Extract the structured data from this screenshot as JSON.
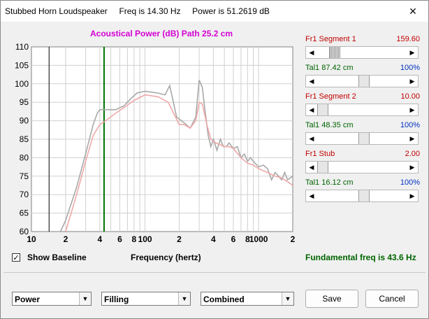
{
  "window": {
    "title": "Stubbed Horn Loudspeaker",
    "freq_text": "Freq is 14.30 Hz",
    "power_text": "Power is 51.2619 dB",
    "close_glyph": "✕"
  },
  "chart_title": "Acoustical Power (dB)   Path 25.2 cm",
  "chart_data": {
    "type": "line",
    "title": "Acoustical Power (dB)   Path 25.2 cm",
    "xlabel": "Frequency (hertz)",
    "ylabel": "",
    "x_scale": "log",
    "xlim": [
      10,
      2000
    ],
    "ylim": [
      60,
      110
    ],
    "y_ticks": [
      110,
      105,
      100,
      95,
      90,
      85,
      80,
      75,
      70,
      65,
      60
    ],
    "x_ticks": [
      {
        "v": 10,
        "label": "10"
      },
      {
        "v": 20,
        "label": "2"
      },
      {
        "v": 40,
        "label": "4"
      },
      {
        "v": 60,
        "label": "6"
      },
      {
        "v": 80,
        "label": "8"
      },
      {
        "v": 100,
        "label": "100"
      },
      {
        "v": 200,
        "label": "2"
      },
      {
        "v": 400,
        "label": "4"
      },
      {
        "v": 600,
        "label": "6"
      },
      {
        "v": 800,
        "label": "8"
      },
      {
        "v": 1000,
        "label": "1000"
      },
      {
        "v": 2000,
        "label": "2"
      }
    ],
    "grid": true,
    "markers": [
      {
        "x": 14.3,
        "color": "#000000"
      },
      {
        "x": 43.6,
        "color": "#007000"
      }
    ],
    "series": [
      {
        "color": "#a8a8a8",
        "points": [
          [
            18,
            60
          ],
          [
            20,
            63
          ],
          [
            25,
            72
          ],
          [
            30,
            81
          ],
          [
            35,
            89
          ],
          [
            38,
            92
          ],
          [
            40,
            93
          ],
          [
            45,
            93
          ],
          [
            55,
            93
          ],
          [
            65,
            94
          ],
          [
            75,
            96
          ],
          [
            85,
            97.5
          ],
          [
            100,
            98
          ],
          [
            130,
            97.5
          ],
          [
            150,
            97
          ],
          [
            165,
            99.5
          ],
          [
            175,
            96
          ],
          [
            190,
            91
          ],
          [
            220,
            89.5
          ],
          [
            250,
            88
          ],
          [
            280,
            91
          ],
          [
            300,
            101
          ],
          [
            320,
            99
          ],
          [
            340,
            92
          ],
          [
            360,
            86
          ],
          [
            380,
            83
          ],
          [
            400,
            85
          ],
          [
            430,
            82
          ],
          [
            460,
            85
          ],
          [
            490,
            83
          ],
          [
            520,
            83
          ],
          [
            550,
            84
          ],
          [
            600,
            82.5
          ],
          [
            650,
            83
          ],
          [
            700,
            80
          ],
          [
            750,
            81
          ],
          [
            800,
            79
          ],
          [
            850,
            80
          ],
          [
            900,
            79
          ],
          [
            1000,
            77.5
          ],
          [
            1100,
            78
          ],
          [
            1200,
            77
          ],
          [
            1300,
            74
          ],
          [
            1400,
            76
          ],
          [
            1500,
            75
          ],
          [
            1600,
            74
          ],
          [
            1700,
            76
          ],
          [
            1800,
            74
          ],
          [
            2000,
            75
          ]
        ]
      },
      {
        "color": "#f0a8a8",
        "points": [
          [
            20,
            60
          ],
          [
            25,
            70
          ],
          [
            30,
            79
          ],
          [
            35,
            86
          ],
          [
            40,
            89
          ],
          [
            45,
            90
          ],
          [
            55,
            92
          ],
          [
            65,
            93.5
          ],
          [
            80,
            95.5
          ],
          [
            100,
            97
          ],
          [
            130,
            96.5
          ],
          [
            160,
            95
          ],
          [
            200,
            89
          ],
          [
            220,
            89
          ],
          [
            250,
            88
          ],
          [
            280,
            90
          ],
          [
            300,
            95
          ],
          [
            320,
            94.5
          ],
          [
            350,
            89
          ],
          [
            380,
            85
          ],
          [
            420,
            84
          ],
          [
            460,
            83.5
          ],
          [
            500,
            83
          ],
          [
            550,
            83
          ],
          [
            600,
            82.5
          ],
          [
            700,
            80
          ],
          [
            800,
            78.5
          ],
          [
            900,
            78
          ],
          [
            1000,
            77
          ],
          [
            1200,
            76
          ],
          [
            1400,
            75
          ],
          [
            1600,
            74.5
          ],
          [
            1800,
            73.5
          ],
          [
            2000,
            72.5
          ]
        ]
      }
    ]
  },
  "controls": [
    {
      "label": "Fr1  Segment 1",
      "value": "159.60",
      "color": "red",
      "thumb": 0.15,
      "hatched": true
    },
    {
      "label": "Tal1  87.42 cm",
      "value": "100%",
      "color": "green",
      "thumb": 0.53,
      "hatched": false
    },
    {
      "label": "Fr1  Segment 2",
      "value": "10.00",
      "color": "red",
      "thumb": 0.0,
      "hatched": false
    },
    {
      "label": "Tal1  48.35 cm",
      "value": "100%",
      "color": "green",
      "thumb": 0.53,
      "hatched": false
    },
    {
      "label": "Fr1  Stub",
      "value": "2.00",
      "color": "red",
      "thumb": 0.0,
      "hatched": false
    },
    {
      "label": "Tal1  16.12 cm",
      "value": "100%",
      "color": "green",
      "thumb": 0.53,
      "hatched": false
    }
  ],
  "show_baseline": {
    "checked_glyph": "✓",
    "label": "Show Baseline"
  },
  "x_axis_label": "Frequency (hertz)",
  "fundamental": "Fundamental freq is 43.6 Hz",
  "selects": {
    "mode": "Power",
    "filling": "Filling",
    "combined": "Combined",
    "dropdown_glyph": "▼"
  },
  "buttons": {
    "save": "Save",
    "cancel": "Cancel"
  },
  "scroll_left_glyph": "◀",
  "scroll_right_glyph": "▶"
}
